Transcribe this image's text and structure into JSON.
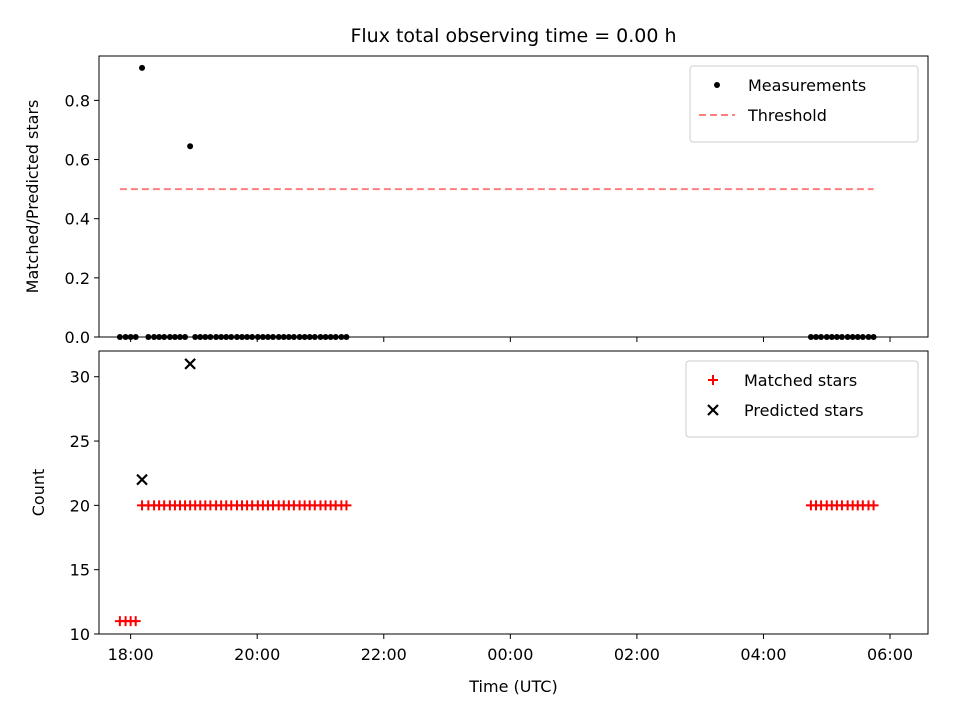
{
  "chart_data": [
    {
      "type": "scatter",
      "panel": "top",
      "title": "Flux total observing time = 0.00 h",
      "xlabel": "",
      "ylabel": "Matched/Predicted stars",
      "ylim": [
        0,
        0.95
      ],
      "yticks": [
        0.0,
        0.2,
        0.4,
        0.6,
        0.8
      ],
      "ytick_labels": [
        "0.0",
        "0.2",
        "0.4",
        "0.6",
        "0.8"
      ],
      "x_unit": "hours since 18:00 UTC",
      "xlim": [
        -0.5,
        12.6
      ],
      "legend_position": "top-right",
      "series": [
        {
          "name": "Measurements",
          "kind": "points",
          "color": "#000000",
          "points": [
            [
              -0.17,
              0
            ],
            [
              -0.08,
              0
            ],
            [
              0.0,
              0
            ],
            [
              0.08,
              0
            ],
            [
              0.28,
              0
            ],
            [
              0.37,
              0
            ],
            [
              0.45,
              0
            ],
            [
              0.53,
              0
            ],
            [
              0.62,
              0
            ],
            [
              0.7,
              0
            ],
            [
              0.78,
              0
            ],
            [
              0.86,
              0
            ],
            [
              1.02,
              0
            ],
            [
              1.1,
              0
            ],
            [
              1.18,
              0
            ],
            [
              1.26,
              0
            ],
            [
              1.35,
              0
            ],
            [
              1.43,
              0
            ],
            [
              1.51,
              0
            ],
            [
              1.59,
              0
            ],
            [
              1.68,
              0
            ],
            [
              1.76,
              0
            ],
            [
              1.84,
              0
            ],
            [
              1.92,
              0
            ],
            [
              2.01,
              0
            ],
            [
              2.09,
              0
            ],
            [
              2.17,
              0
            ],
            [
              2.25,
              0
            ],
            [
              2.34,
              0
            ],
            [
              2.42,
              0
            ],
            [
              2.5,
              0
            ],
            [
              2.58,
              0
            ],
            [
              2.67,
              0
            ],
            [
              2.75,
              0
            ],
            [
              2.83,
              0
            ],
            [
              2.91,
              0
            ],
            [
              3.0,
              0
            ],
            [
              3.08,
              0
            ],
            [
              3.16,
              0
            ],
            [
              3.24,
              0
            ],
            [
              3.33,
              0
            ],
            [
              3.41,
              0
            ],
            [
              10.75,
              0
            ],
            [
              10.83,
              0
            ],
            [
              10.91,
              0
            ],
            [
              11.0,
              0
            ],
            [
              11.08,
              0
            ],
            [
              11.16,
              0
            ],
            [
              11.24,
              0
            ],
            [
              11.33,
              0
            ],
            [
              11.41,
              0
            ],
            [
              11.49,
              0
            ],
            [
              11.57,
              0
            ],
            [
              11.66,
              0
            ],
            [
              11.74,
              0
            ],
            [
              0.18,
              0.91
            ],
            [
              0.94,
              0.645
            ]
          ]
        },
        {
          "name": "Threshold",
          "kind": "dashed-line",
          "color": "#ff7f7f",
          "x": [
            -0.17,
            11.74
          ],
          "y": [
            0.5,
            0.5
          ]
        }
      ]
    },
    {
      "type": "scatter",
      "panel": "bottom",
      "title": "",
      "xlabel": "Time (UTC)",
      "ylabel": "Count",
      "ylim": [
        10,
        32
      ],
      "yticks": [
        10,
        15,
        20,
        25,
        30
      ],
      "ytick_labels": [
        "10",
        "15",
        "20",
        "25",
        "30"
      ],
      "x_unit": "hours since 18:00 UTC",
      "xlim": [
        -0.5,
        12.6
      ],
      "xticks": [
        0,
        2,
        4,
        6,
        8,
        10,
        12
      ],
      "xtick_labels": [
        "18:00",
        "20:00",
        "22:00",
        "00:00",
        "02:00",
        "04:00",
        "06:00"
      ],
      "legend_position": "top-right",
      "series": [
        {
          "name": "Matched stars",
          "kind": "plus",
          "color": "#ff0000",
          "points": [
            [
              -0.17,
              11
            ],
            [
              -0.08,
              11
            ],
            [
              0.0,
              11
            ],
            [
              0.08,
              11
            ],
            [
              0.18,
              20
            ],
            [
              0.28,
              20
            ],
            [
              0.37,
              20
            ],
            [
              0.45,
              20
            ],
            [
              0.53,
              20
            ],
            [
              0.62,
              20
            ],
            [
              0.7,
              20
            ],
            [
              0.78,
              20
            ],
            [
              0.86,
              20
            ],
            [
              0.94,
              20
            ],
            [
              1.02,
              20
            ],
            [
              1.1,
              20
            ],
            [
              1.18,
              20
            ],
            [
              1.26,
              20
            ],
            [
              1.35,
              20
            ],
            [
              1.43,
              20
            ],
            [
              1.51,
              20
            ],
            [
              1.59,
              20
            ],
            [
              1.68,
              20
            ],
            [
              1.76,
              20
            ],
            [
              1.84,
              20
            ],
            [
              1.92,
              20
            ],
            [
              2.01,
              20
            ],
            [
              2.09,
              20
            ],
            [
              2.17,
              20
            ],
            [
              2.25,
              20
            ],
            [
              2.34,
              20
            ],
            [
              2.42,
              20
            ],
            [
              2.5,
              20
            ],
            [
              2.58,
              20
            ],
            [
              2.67,
              20
            ],
            [
              2.75,
              20
            ],
            [
              2.83,
              20
            ],
            [
              2.91,
              20
            ],
            [
              3.0,
              20
            ],
            [
              3.08,
              20
            ],
            [
              3.16,
              20
            ],
            [
              3.24,
              20
            ],
            [
              3.33,
              20
            ],
            [
              3.41,
              20
            ],
            [
              10.75,
              20
            ],
            [
              10.83,
              20
            ],
            [
              10.91,
              20
            ],
            [
              11.0,
              20
            ],
            [
              11.08,
              20
            ],
            [
              11.16,
              20
            ],
            [
              11.24,
              20
            ],
            [
              11.33,
              20
            ],
            [
              11.41,
              20
            ],
            [
              11.49,
              20
            ],
            [
              11.57,
              20
            ],
            [
              11.66,
              20
            ],
            [
              11.74,
              20
            ]
          ]
        },
        {
          "name": "Predicted stars",
          "kind": "x",
          "color": "#000000",
          "points": [
            [
              0.18,
              22
            ],
            [
              0.94,
              31
            ]
          ]
        }
      ]
    }
  ]
}
